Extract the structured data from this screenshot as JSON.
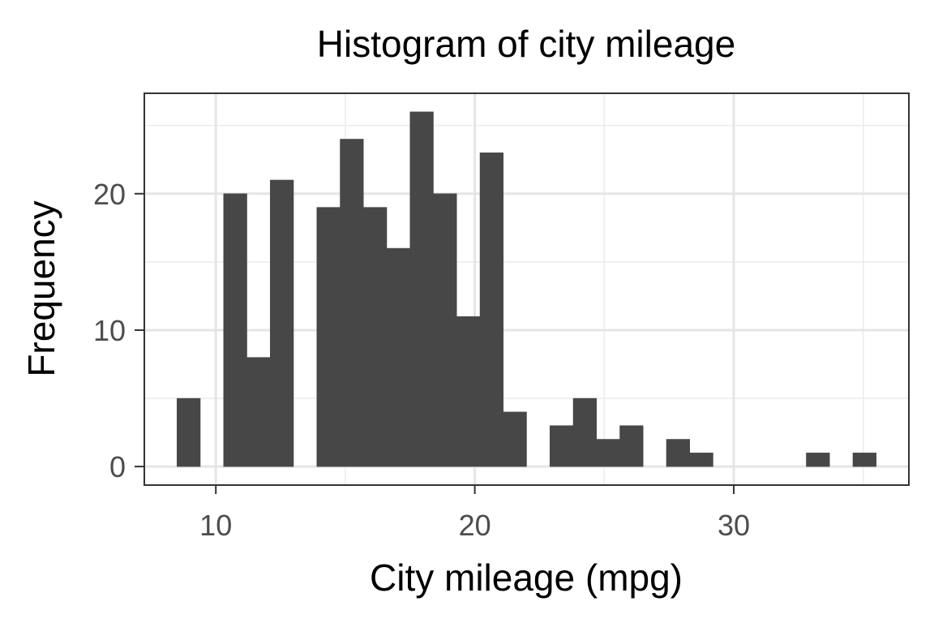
{
  "chart_data": {
    "type": "bar",
    "subtype": "histogram",
    "title": "Histogram of city mileage",
    "xlabel": "City mileage (mpg)",
    "ylabel": "Frequency",
    "xlim": [
      7.27,
      36.73
    ],
    "ylim": [
      -1.3,
      27.3
    ],
    "x_ticks": [
      10,
      20,
      30
    ],
    "y_ticks": [
      0,
      10,
      20
    ],
    "grid": true,
    "bar_color": "#474747",
    "bins": [
      {
        "x_start": 8.5,
        "x_end": 9.4,
        "count": 5
      },
      {
        "x_start": 9.4,
        "x_end": 10.3,
        "count": 0
      },
      {
        "x_start": 10.3,
        "x_end": 11.2,
        "count": 20
      },
      {
        "x_start": 11.2,
        "x_end": 12.1,
        "count": 8
      },
      {
        "x_start": 12.1,
        "x_end": 13.0,
        "count": 21
      },
      {
        "x_start": 13.0,
        "x_end": 13.9,
        "count": 0
      },
      {
        "x_start": 13.9,
        "x_end": 14.8,
        "count": 19
      },
      {
        "x_start": 14.8,
        "x_end": 15.7,
        "count": 24
      },
      {
        "x_start": 15.7,
        "x_end": 16.6,
        "count": 19
      },
      {
        "x_start": 16.6,
        "x_end": 17.5,
        "count": 16
      },
      {
        "x_start": 17.5,
        "x_end": 18.4,
        "count": 26
      },
      {
        "x_start": 18.4,
        "x_end": 19.3,
        "count": 20
      },
      {
        "x_start": 19.3,
        "x_end": 20.2,
        "count": 11
      },
      {
        "x_start": 20.2,
        "x_end": 21.1,
        "count": 23
      },
      {
        "x_start": 21.1,
        "x_end": 22.0,
        "count": 4
      },
      {
        "x_start": 22.0,
        "x_end": 22.9,
        "count": 0
      },
      {
        "x_start": 22.9,
        "x_end": 23.8,
        "count": 3
      },
      {
        "x_start": 23.8,
        "x_end": 24.7,
        "count": 5
      },
      {
        "x_start": 24.7,
        "x_end": 25.6,
        "count": 2
      },
      {
        "x_start": 25.6,
        "x_end": 26.5,
        "count": 3
      },
      {
        "x_start": 26.5,
        "x_end": 27.4,
        "count": 0
      },
      {
        "x_start": 27.4,
        "x_end": 28.3,
        "count": 2
      },
      {
        "x_start": 28.3,
        "x_end": 29.2,
        "count": 1
      },
      {
        "x_start": 29.2,
        "x_end": 30.1,
        "count": 0
      },
      {
        "x_start": 30.1,
        "x_end": 31.0,
        "count": 0
      },
      {
        "x_start": 31.0,
        "x_end": 31.9,
        "count": 0
      },
      {
        "x_start": 31.9,
        "x_end": 32.8,
        "count": 0
      },
      {
        "x_start": 32.8,
        "x_end": 33.7,
        "count": 1
      },
      {
        "x_start": 33.7,
        "x_end": 34.6,
        "count": 0
      },
      {
        "x_start": 34.6,
        "x_end": 35.5,
        "count": 1
      }
    ]
  }
}
